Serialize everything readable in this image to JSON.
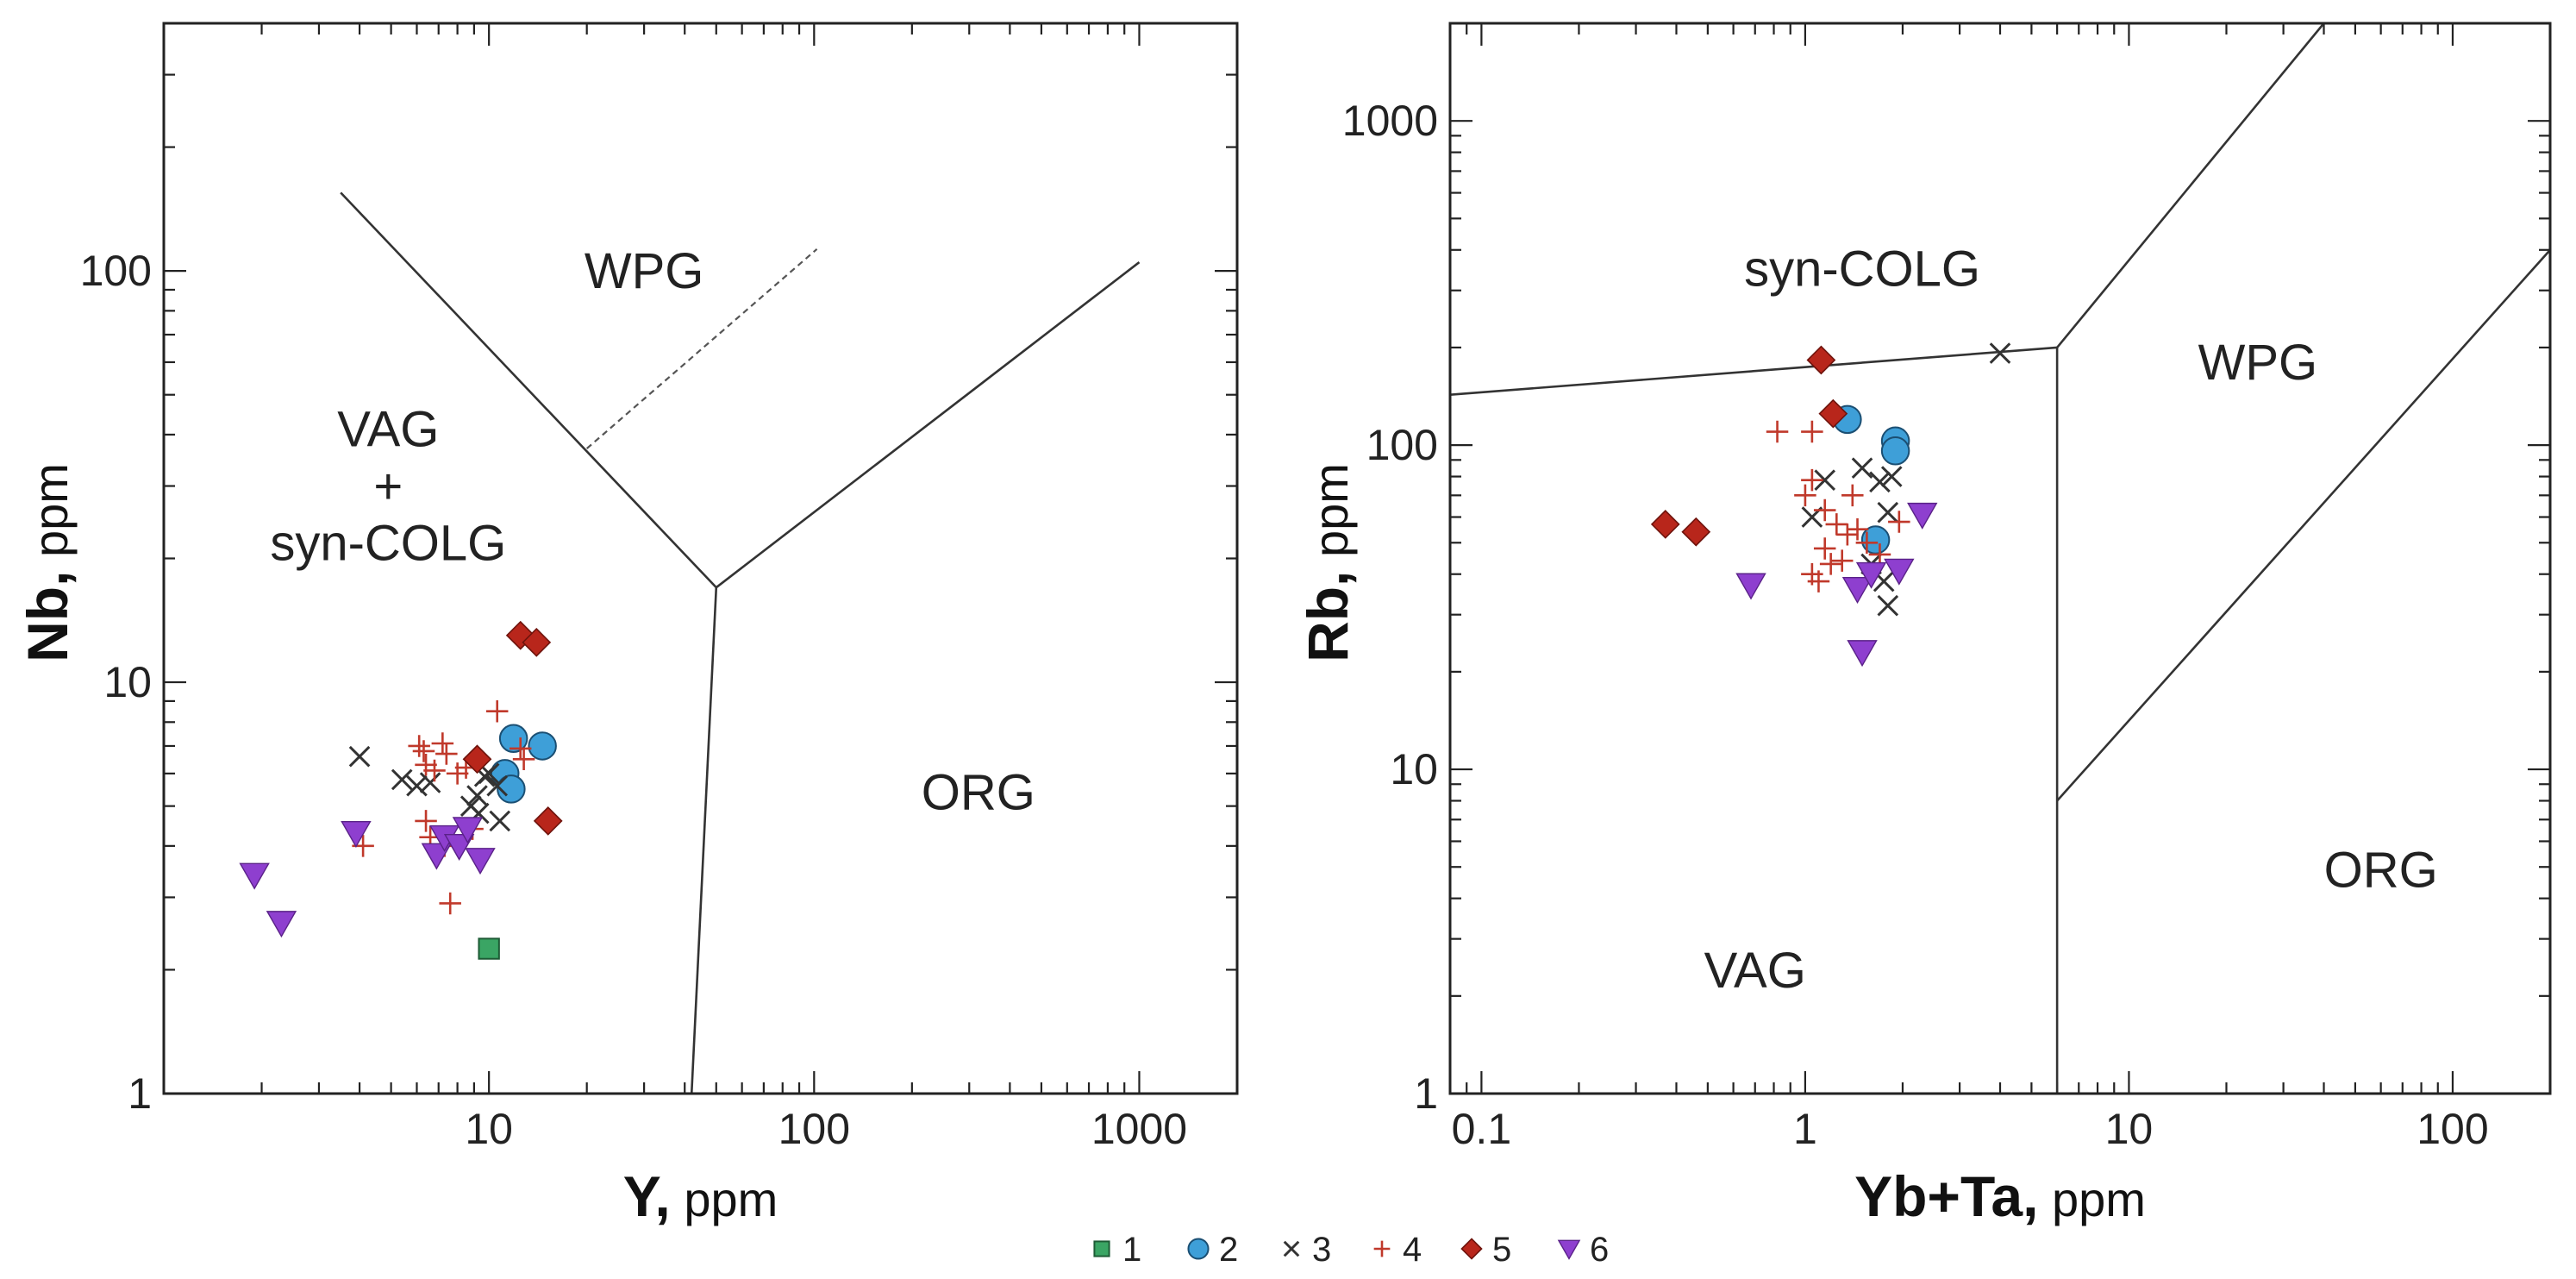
{
  "series_styles": {
    "1": {
      "marker": "square",
      "fill": "#3aa564",
      "stroke": "#1d5b35"
    },
    "2": {
      "marker": "circle",
      "fill": "#3e9fd8",
      "stroke": "#1b4f73"
    },
    "3": {
      "marker": "x",
      "fill": "none",
      "stroke": "#333333"
    },
    "4": {
      "marker": "plus",
      "fill": "none",
      "stroke": "#c0392b"
    },
    "5": {
      "marker": "diamond",
      "fill": "#b8261b",
      "stroke": "#6e130c"
    },
    "6": {
      "marker": "triangle-down",
      "fill": "#8e3fcf",
      "stroke": "#5a2288"
    }
  },
  "legend": [
    {
      "label": "1",
      "series": "1"
    },
    {
      "label": "2",
      "series": "2"
    },
    {
      "label": "3",
      "series": "3"
    },
    {
      "label": "4",
      "series": "4"
    },
    {
      "label": "5",
      "series": "5"
    },
    {
      "label": "6",
      "series": "6"
    }
  ],
  "chart_data": [
    {
      "type": "scatter",
      "xscale": "log",
      "yscale": "log",
      "xlim": [
        1,
        2000
      ],
      "ylim": [
        1,
        400
      ],
      "xticks": [
        {
          "v": 10,
          "label": "10"
        },
        {
          "v": 100,
          "label": "100"
        },
        {
          "v": 1000,
          "label": "1000"
        }
      ],
      "yticks": [
        {
          "v": 1,
          "label": "1"
        },
        {
          "v": 10,
          "label": "10"
        },
        {
          "v": 100,
          "label": "100"
        }
      ],
      "xlabel_bold": "Y,",
      "xlabel_unit": " ppm",
      "ylabel_bold": "Nb,",
      "ylabel_unit": " ppm",
      "regions": [
        {
          "lines": [
            "WPG"
          ],
          "x": 30,
          "y": 100
        },
        {
          "lines": [
            "VAG",
            "+",
            "syn-COLG"
          ],
          "x": 4.9,
          "y": 30
        },
        {
          "lines": [
            "ORG"
          ],
          "x": 320,
          "y": 5.4
        }
      ],
      "boundaries": [
        {
          "points": [
            [
              3.5,
              155
            ],
            [
              50,
              17
            ]
          ]
        },
        {
          "points": [
            [
              50,
              17
            ],
            [
              1000,
              105
            ]
          ]
        },
        {
          "points": [
            [
              50,
              17
            ],
            [
              42,
              1
            ]
          ]
        },
        {
          "points": [
            [
              20,
              37
            ],
            [
              102,
              113
            ]
          ],
          "dashed": true
        }
      ],
      "series": [
        {
          "name": "1",
          "points": [
            [
              10,
              2.25
            ]
          ]
        },
        {
          "name": "2",
          "points": [
            [
              11.9,
              7.3
            ],
            [
              14.6,
              7
            ],
            [
              11.2,
              6
            ],
            [
              11.7,
              5.5
            ]
          ]
        },
        {
          "name": "3",
          "points": [
            [
              4,
              6.6
            ],
            [
              5.4,
              5.8
            ],
            [
              6,
              5.6
            ],
            [
              6.6,
              5.7
            ],
            [
              8.8,
              5
            ],
            [
              9.2,
              5.3
            ],
            [
              9.3,
              4.8
            ],
            [
              10,
              6
            ],
            [
              10.6,
              5.6
            ],
            [
              10.8,
              4.6
            ],
            [
              9.7,
              5.9
            ]
          ]
        },
        {
          "name": "4",
          "points": [
            [
              4.1,
              4
            ],
            [
              6.1,
              7
            ],
            [
              6.3,
              6.8
            ],
            [
              6.4,
              6.3
            ],
            [
              6.8,
              6.1
            ],
            [
              7.2,
              7.1
            ],
            [
              7.4,
              6.7
            ],
            [
              8,
              6
            ],
            [
              8.5,
              6.2
            ],
            [
              6.4,
              4.6
            ],
            [
              6.6,
              4.2
            ],
            [
              7.3,
              4
            ],
            [
              7.6,
              2.9
            ],
            [
              8.9,
              4.4
            ],
            [
              10.6,
              8.5
            ],
            [
              12.5,
              6.9
            ],
            [
              12.8,
              6.5
            ]
          ]
        },
        {
          "name": "5",
          "points": [
            [
              9.2,
              6.5
            ],
            [
              12.5,
              13
            ],
            [
              14,
              12.5
            ],
            [
              15.2,
              4.6
            ]
          ]
        },
        {
          "name": "6",
          "points": [
            [
              1.9,
              3.4
            ],
            [
              2.3,
              2.6
            ],
            [
              3.9,
              4.3
            ],
            [
              6.9,
              3.8
            ],
            [
              7.3,
              4.2
            ],
            [
              8.1,
              4
            ],
            [
              8.6,
              4.4
            ],
            [
              9.4,
              3.7
            ]
          ]
        }
      ]
    },
    {
      "type": "scatter",
      "xscale": "log",
      "yscale": "log",
      "xlim": [
        0.08,
        200
      ],
      "ylim": [
        1,
        2000
      ],
      "xticks": [
        {
          "v": 0.1,
          "label": "0.1"
        },
        {
          "v": 1,
          "label": "1"
        },
        {
          "v": 10,
          "label": "10"
        },
        {
          "v": 100,
          "label": "100"
        }
      ],
      "yticks": [
        {
          "v": 1,
          "label": "1"
        },
        {
          "v": 10,
          "label": "10"
        },
        {
          "v": 100,
          "label": "100"
        },
        {
          "v": 1000,
          "label": "1000"
        }
      ],
      "xlabel_bold": "Yb+Ta,",
      "xlabel_unit": " ppm",
      "ylabel_bold": "Rb,",
      "ylabel_unit": " ppm",
      "regions": [
        {
          "lines": [
            "syn-COLG"
          ],
          "x": 1.5,
          "y": 350
        },
        {
          "lines": [
            "WPG"
          ],
          "x": 25,
          "y": 180
        },
        {
          "lines": [
            "VAG"
          ],
          "x": 0.7,
          "y": 2.4
        },
        {
          "lines": [
            "ORG"
          ],
          "x": 60,
          "y": 4.9
        }
      ],
      "boundaries": [
        {
          "points": [
            [
              0.08,
              143
            ],
            [
              6,
              200
            ]
          ]
        },
        {
          "points": [
            [
              6,
              200
            ],
            [
              6,
              1
            ]
          ]
        },
        {
          "points": [
            [
              6,
              200
            ],
            [
              40,
              2000
            ]
          ]
        },
        {
          "points": [
            [
              6,
              8
            ],
            [
              200,
              400
            ]
          ]
        }
      ],
      "series": [
        {
          "name": "2",
          "points": [
            [
              1.35,
              120
            ],
            [
              1.9,
              103
            ],
            [
              1.9,
              96
            ],
            [
              1.65,
              51
            ]
          ]
        },
        {
          "name": "3",
          "points": [
            [
              4,
              192
            ],
            [
              1.15,
              78
            ],
            [
              1.05,
              60
            ],
            [
              1.5,
              85
            ],
            [
              1.7,
              77
            ],
            [
              1.8,
              62
            ],
            [
              1.85,
              80
            ],
            [
              1.6,
              43
            ],
            [
              1.75,
              38
            ],
            [
              1.8,
              32
            ]
          ]
        },
        {
          "name": "4",
          "points": [
            [
              0.82,
              110
            ],
            [
              1.05,
              110
            ],
            [
              1.05,
              78
            ],
            [
              1.15,
              63
            ],
            [
              1.25,
              57
            ],
            [
              1.35,
              53
            ],
            [
              1.15,
              48
            ],
            [
              1.05,
              40
            ],
            [
              1.2,
              43
            ],
            [
              1.3,
              44
            ],
            [
              1.45,
              55
            ],
            [
              1.55,
              50
            ],
            [
              1.1,
              38
            ],
            [
              1.7,
              46
            ],
            [
              1.95,
              58
            ],
            [
              1.0,
              70
            ],
            [
              1.4,
              70
            ]
          ]
        },
        {
          "name": "5",
          "points": [
            [
              1.12,
              183
            ],
            [
              1.22,
              125
            ],
            [
              0.37,
              57
            ],
            [
              0.46,
              54
            ]
          ]
        },
        {
          "name": "6",
          "points": [
            [
              0.68,
              37
            ],
            [
              1.45,
              36
            ],
            [
              1.6,
              40
            ],
            [
              1.95,
              41
            ],
            [
              2.3,
              61
            ],
            [
              1.5,
              23
            ]
          ]
        }
      ]
    }
  ]
}
